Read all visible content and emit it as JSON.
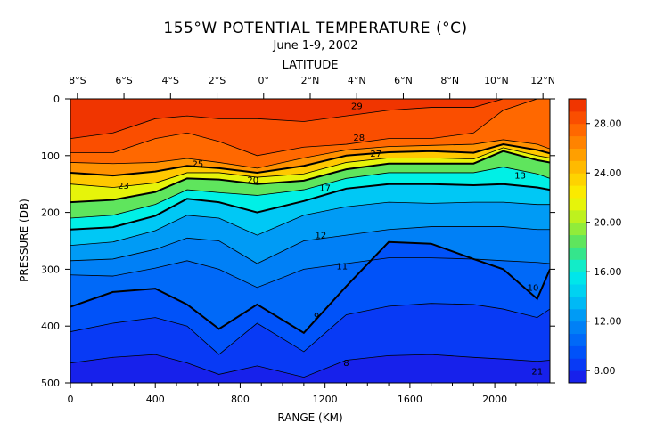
{
  "chart_data": {
    "type": "heatmap",
    "title": "155°W POTENTIAL TEMPERATURE (°C)",
    "subtitle": "June 1-9, 2002",
    "xlabel": "RANGE (KM)",
    "ylabel": "PRESSURE (DB)",
    "top_axis_label": "LATITUDE",
    "top_ticks": [
      "8°S",
      "6°S",
      "4°S",
      "2°S",
      "0°",
      "2°N",
      "4°N",
      "6°N",
      "8°N",
      "10°N",
      "12°N"
    ],
    "top_tick_lat": [
      -8,
      -6,
      -4,
      -2,
      0,
      2,
      4,
      6,
      8,
      10,
      12
    ],
    "xlim": [
      0,
      2260
    ],
    "ylim": [
      0,
      500
    ],
    "x_ticks": [
      0,
      400,
      800,
      1200,
      1600,
      2000
    ],
    "y_ticks": [
      0,
      100,
      200,
      300,
      400,
      500
    ],
    "colorbar": {
      "min": 7,
      "max": 30,
      "ticks": [
        "8.00",
        "12.00",
        "16.00",
        "20.00",
        "24.00",
        "28.00"
      ],
      "tick_values": [
        8,
        12,
        16,
        20,
        24,
        28
      ]
    },
    "contour_levels": [
      {
        "level": 29,
        "pressure": [
          70,
          60,
          35,
          30,
          35,
          35,
          40,
          30,
          20,
          15,
          15,
          0,
          0,
          0
        ]
      },
      {
        "level": 28,
        "pressure": [
          95,
          95,
          70,
          60,
          75,
          100,
          85,
          80,
          70,
          70,
          60,
          20,
          0,
          0
        ]
      },
      {
        "level": 27,
        "pressure": [
          112,
          114,
          112,
          105,
          112,
          122,
          104,
          90,
          84,
          82,
          80,
          72,
          80,
          88
        ]
      },
      {
        "level": 25,
        "pressure": [
          130,
          135,
          128,
          118,
          122,
          130,
          118,
          100,
          94,
          92,
          95,
          80,
          90,
          96
        ]
      },
      {
        "level": 23,
        "pressure": [
          150,
          156,
          148,
          130,
          130,
          138,
          132,
          112,
          104,
          104,
          106,
          86,
          100,
          104
        ]
      },
      {
        "level": 20,
        "pressure": [
          182,
          178,
          164,
          140,
          142,
          150,
          144,
          124,
          114,
          114,
          114,
          92,
          108,
          112
        ]
      },
      {
        "level": 17,
        "pressure": [
          210,
          205,
          186,
          160,
          165,
          170,
          160,
          140,
          130,
          130,
          130,
          120,
          132,
          140
        ]
      },
      {
        "level": 15,
        "pressure": [
          230,
          226,
          206,
          176,
          182,
          200,
          180,
          158,
          150,
          150,
          152,
          150,
          156,
          160
        ]
      },
      {
        "level": 13,
        "pressure": [
          258,
          252,
          232,
          205,
          210,
          240,
          205,
          190,
          182,
          184,
          182,
          182,
          186,
          186
        ]
      },
      {
        "level": 12,
        "pressure": [
          285,
          282,
          265,
          245,
          250,
          290,
          250,
          240,
          230,
          225,
          225,
          225,
          230,
          230
        ]
      },
      {
        "level": 11,
        "pressure": [
          310,
          312,
          298,
          285,
          300,
          332,
          300,
          290,
          280,
          280,
          282,
          285,
          288,
          290
        ]
      },
      {
        "level": 10,
        "pressure": [
          366,
          340,
          334,
          362,
          405,
          362,
          412,
          330,
          252,
          255,
          282,
          300,
          352,
          300
        ]
      },
      {
        "level": 9,
        "pressure": [
          410,
          395,
          385,
          400,
          450,
          395,
          445,
          380,
          365,
          360,
          362,
          370,
          385,
          370
        ]
      },
      {
        "level": 8,
        "pressure": [
          465,
          455,
          450,
          465,
          485,
          470,
          490,
          460,
          452,
          450,
          455,
          458,
          462,
          460
        ]
      }
    ],
    "contour_x": [
      0,
      200,
      400,
      550,
      700,
      880,
      1100,
      1300,
      1500,
      1700,
      1900,
      2040,
      2200,
      2260
    ],
    "inline_labels": [
      "29",
      "28",
      "27",
      "25",
      "23",
      "20",
      "17",
      "13",
      "12",
      "11",
      "10",
      "9",
      "8",
      "21"
    ]
  }
}
